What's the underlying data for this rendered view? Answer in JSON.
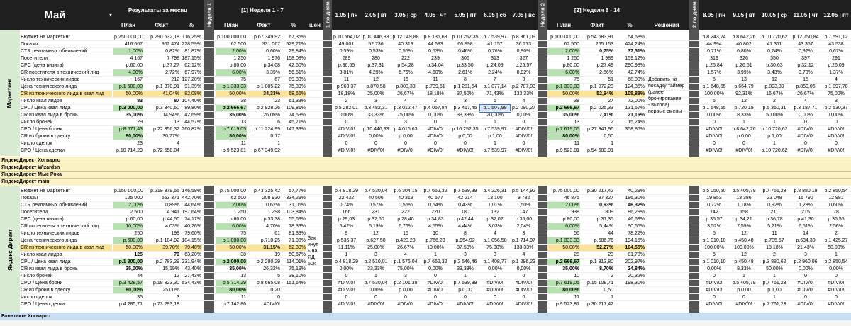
{
  "header": {
    "month": "Май",
    "results_title": "Результаты за месяц",
    "week1_vert": "Неделя 1",
    "week1_title": "[1] Неделя 1 - 7",
    "days_vert": "1 по дням",
    "week2_vert": "Неделя 2",
    "week2_title": "[2] Неделя 8 - 14",
    "days2_vert": "2 по дням",
    "plan": "План",
    "fact": "Факт",
    "pct": "%",
    "solutions": "Решения",
    "trunc": "шен",
    "days1": [
      "1.05 | пн",
      "2.05 | вт",
      "3.05 | ср",
      "4.05 | чт",
      "5.05 | пт",
      "6.05 | сб",
      "7.05 | вс"
    ],
    "days2": [
      "8.05 | пн",
      "9.05 | вт",
      "10.05 | ср",
      "11.05 | чт",
      "12.05 | пт"
    ]
  },
  "side_labels": {
    "marketing": "Маркетинг",
    "yandex": "Яндекс Директ"
  },
  "notes": {
    "w2_solution": "Добавить на\nпосадку таймер\n(ранее\nбронирование\n- выгода)\nпервые смены",
    "w1_trunc": "Зак\nинут\nь на\nЯД\n50к"
  },
  "sections": {
    "s1": "ЯндексДирект Хогвартс",
    "s2": "ЯндексДирект Wizardsn",
    "s3": "ЯндексДирект Мыс Рока",
    "s4": "ЯндексДирект main",
    "s5": "Вконтакте Хогвартс"
  },
  "block1": [
    {
      "label": "Бюджет на маркетинг",
      "m": [
        "р.250 000,00",
        "р.290 632,18",
        "116,25%"
      ],
      "w1": [
        "р.100 000,00",
        "р.67 349,92",
        "67,35%"
      ],
      "d1": [
        "р.10 564,02",
        "р.10 446,93",
        "р.12 049,88",
        "р.8 135,68",
        "р.10 252,35",
        "р.7 539,97",
        "р.8 361,09"
      ],
      "w2": [
        "р.100 000,00",
        "р.54 683,91",
        "54,68%"
      ],
      "d2": [
        "р.8 243,24",
        "р.8 642,26",
        "р.10 720,62",
        "р.12 750,84",
        "р.7 591,12"
      ]
    },
    {
      "label": "Показы",
      "m": [
        "416 667",
        "952 474",
        "228,59%"
      ],
      "w1": [
        "62 500",
        "331 067",
        "529,71%"
      ],
      "d1": [
        "49 001",
        "52 736",
        "40 319",
        "44 683",
        "66 898",
        "41 157",
        "36 273"
      ],
      "w2": [
        "62 500",
        "265 153",
        "424,24%"
      ],
      "d2": [
        "44 994",
        "40 802",
        "47 311",
        "43 357",
        "43 538"
      ]
    },
    {
      "label": "CTR рекламных объявлений",
      "m": [
        "1,00%",
        "0,82%",
        "81,87%"
      ],
      "w1": [
        "2,00%",
        "0,60%",
        "29,84%"
      ],
      "d1": [
        "0,59%",
        "0,53%",
        "0,55%",
        "0,53%",
        "0,46%",
        "0,76%",
        "0,90%"
      ],
      "w2": [
        "2,00%",
        "0,75%",
        "37,51%"
      ],
      "d2": [
        "0,71%",
        "0,80%",
        "0,74%",
        "0,92%",
        "0,67%"
      ]
    },
    {
      "label": "Посетители",
      "m": [
        "4 167",
        "7 798",
        "187,15%"
      ],
      "w1": [
        "1 250",
        "1 976",
        "158,08%"
      ],
      "d1": [
        "289",
        "280",
        "222",
        "239",
        "306",
        "313",
        "327"
      ],
      "w2": [
        "1 250",
        "1 989",
        "159,12%"
      ],
      "d2": [
        "319",
        "326",
        "350",
        "397",
        "291"
      ]
    },
    {
      "label": "CPC (цена визита)",
      "m": [
        "р.60,00",
        "р.37,27",
        "62,12%"
      ],
      "w1": [
        "р.80,00",
        "р.34,08",
        "42,60%"
      ],
      "d1": [
        "р.36,55",
        "р.37,31",
        "р.54,28",
        "р.34,04",
        "р.33,50",
        "р.24,09",
        "р.25,57"
      ],
      "w2": [
        "р.80,00",
        "р.27,49",
        "290,98%"
      ],
      "d2": [
        "р.25,84",
        "р.26,51",
        "р.30,63",
        "р.32,12",
        "р.26,09"
      ]
    },
    {
      "label": "CR посетителя в технический лид",
      "m": [
        "4,00%",
        "2,72%",
        "67,97%"
      ],
      "w1": [
        "6,00%",
        "3,39%",
        "56,51%"
      ],
      "d1": [
        "3,81%",
        "4,29%",
        "6,76%",
        "4,60%",
        "2,61%",
        "2,24%",
        "0,92%"
      ],
      "w2": [
        "6,00%",
        "2,56%",
        "42,74%"
      ],
      "d2": [
        "1,57%",
        "3,99%",
        "3,43%",
        "3,78%",
        "1,37%"
      ]
    },
    {
      "label": "Число технических лидов",
      "m": [
        "167",
        "212",
        "127,20%"
      ],
      "w1": [
        "75",
        "67",
        "89,33%"
      ],
      "d1": [
        "11",
        "12",
        "15",
        "11",
        "8",
        "7",
        "3"
      ],
      "w2": [
        "75",
        "51",
        "68,00%"
      ],
      "d2": [
        "5",
        "13",
        "12",
        "15",
        "4"
      ]
    },
    {
      "label": "Цена технического лида",
      "m": [
        "р.1 500,00",
        "р.1 370,91",
        "91,39%"
      ],
      "w1": [
        "р.1 333,33",
        "р.1 005,22",
        "75,39%"
      ],
      "d1": [
        "р.960,37",
        "р.870,58",
        "р.803,33",
        "р.739,61",
        "р.1 281,54",
        "р.1 077,14",
        "р.2 787,03"
      ],
      "w2": [
        "р.1 333,33",
        "р.1 072,23",
        "124,35%"
      ],
      "d2": [
        "р.1 648,65",
        "р.664,79",
        "р.893,39",
        "р.850,06",
        "р.1 897,78"
      ]
    },
    {
      "label": "CR из технического лида в квал лид",
      "m": [
        "50,00%",
        "41,04%",
        "82,08%"
      ],
      "w1": [
        "50,00%",
        "34,33%",
        "68,66%"
      ],
      "d1": [
        "18,18%",
        "25,00%",
        "26,67%",
        "18,18%",
        "37,50%",
        "71,43%",
        "133,33%"
      ],
      "w2": [
        "50,00%",
        "52,94%",
        "105,88%"
      ],
      "d2": [
        "100,00%",
        "92,31%",
        "16,67%",
        "26,67%",
        "75,00%"
      ]
    },
    {
      "label": "Число квал лидов",
      "m": [
        "83",
        "87",
        "104,40%"
      ],
      "w1": [
        "38",
        "23",
        "61,33%"
      ],
      "d1": [
        "2",
        "3",
        "4",
        "2",
        "3",
        "5",
        "4"
      ],
      "w2": [
        "38",
        "27",
        "72,00%"
      ],
      "d2": [
        "5",
        "12",
        "2",
        "4",
        "3"
      ]
    },
    {
      "label": "CPL / Цена квал лида",
      "m": [
        "р.3 000,00",
        "р.3 340,60",
        "89,80%"
      ],
      "w1": [
        "р.2 666,67",
        "р.2 928,26",
        "109,81%"
      ],
      "d1": [
        "р.5 282,01",
        "р.3 482,31",
        "р.3 012,47",
        "р.4 067,84",
        "р.3 417,45",
        "р.1 507,99",
        "р.2 090,27"
      ],
      "w2": [
        "р.2 666,67",
        "р.2 025,33",
        "131,67%"
      ],
      "d2": [
        "р.1 648,65",
        "р.720,19",
        "р.5 360,31",
        "р.3 187,71",
        "р.2 530,37"
      ]
    },
    {
      "label": "CR из квал лида в бронь",
      "m": [
        "35,00%",
        "14,94%",
        "42,69%"
      ],
      "w1": [
        "35,00%",
        "26,09%",
        "74,53%"
      ],
      "d1": [
        "0,00%",
        "33,33%",
        "75,00%",
        "0,00%",
        "33,33%",
        "20,00%",
        "0,00%"
      ],
      "w2": [
        "35,00%",
        "7,41%",
        "21,16%"
      ],
      "d2": [
        "0,00%",
        "8,33%",
        "50,00%",
        "0,00%",
        "0,00%"
      ]
    },
    {
      "label": "Число броней",
      "m": [
        "29",
        "13",
        "44,57%"
      ],
      "w1": [
        "13",
        "6",
        "45,71%"
      ],
      "d1": [
        "0",
        "1",
        "3",
        "0",
        "1",
        "1",
        "0"
      ],
      "w2": [
        "13",
        "2",
        "15,24%"
      ],
      "d2": [
        "0",
        "1",
        "1",
        "0",
        "0"
      ]
    },
    {
      "label": "CPO / Цена брони",
      "m": [
        "р.8 571,43",
        "р.22 356,32",
        "260,82%"
      ],
      "w1": [
        "р.7 619,05",
        "р.11 224,99",
        "147,33%"
      ],
      "d1": [
        "#DIV/0!",
        "р.10 446,93",
        "р.4 016,63",
        "#DIV/0!",
        "р.10 252,35",
        "р.7 539,97",
        "#DIV/0!"
      ],
      "w2": [
        "р.7 619,05",
        "р.27 341,96",
        "358,86%"
      ],
      "d2": [
        "#DIV/0!",
        "р.8 642,26",
        "р.10 720,62",
        "#DIV/0!",
        "#DIV/0!"
      ]
    },
    {
      "label": "CR из брони в сделку",
      "m": [
        "80,00%",
        "30,77%",
        ""
      ],
      "w1": [
        "80,00%",
        "0,17",
        ""
      ],
      "d1": [
        "#DIV/0!",
        "0,00%",
        "р.0,00",
        "#DIV/0!",
        "р.0,00",
        "р.1,00",
        "#DIV/0!"
      ],
      "w2": [
        "80,00%",
        "0,50",
        ""
      ],
      "d2": [
        "#DIV/0!",
        "р.0,00",
        "р.1,00",
        "#DIV/0!",
        "#DIV/0!"
      ]
    },
    {
      "label": "Число сделок",
      "m": [
        "23",
        "4",
        ""
      ],
      "w1": [
        "11",
        "1",
        ""
      ],
      "d1": [
        "0",
        "0",
        "0",
        "0",
        "0",
        "1",
        "0"
      ],
      "w2": [
        "11",
        "1",
        ""
      ],
      "d2": [
        "0",
        "0",
        "1",
        "0",
        "0"
      ]
    },
    {
      "label": "CPO / Цена сделки",
      "m": [
        "р.10 714,29",
        "р.72 658,04",
        ""
      ],
      "w1": [
        "р.9 523,81",
        "р.67 349,92",
        ""
      ],
      "d1": [
        "#DIV/0!",
        "#DIV/0!",
        "#DIV/0!",
        "#DIV/0!",
        "#DIV/0!",
        "р.7 539,97",
        "#DIV/0!"
      ],
      "w2": [
        "р.9 523,81",
        "р.54 683,91",
        ""
      ],
      "d2": [
        "#DIV/0!",
        "#DIV/0!",
        "р.10 720,62",
        "#DIV/0!",
        "#DIV/0!"
      ]
    }
  ],
  "block2": [
    {
      "label": "Бюджет на маркетинг",
      "m": [
        "р.150 000,00",
        "р.219 879,55",
        "146,59%"
      ],
      "w1": [
        "р.75 000,00",
        "р.43 325,42",
        "57,77%"
      ],
      "d1": [
        "р.4 818,29",
        "р.7 530,04",
        "р.6 304,15",
        "р.7 662,32",
        "р.7 639,39",
        "р.4 226,31",
        "р.5 144,92"
      ],
      "w2": [
        "р.75 000,00",
        "р.30 217,42",
        "40,29%"
      ],
      "d2": [
        "р.5 050,50",
        "р.5 405,79",
        "р.7 761,23",
        "р.8 880,19",
        "р.2 850,54"
      ]
    },
    {
      "label": "Показы",
      "m": [
        "125 000",
        "553 371",
        "442,70%"
      ],
      "w1": [
        "62 500",
        "208 930",
        "334,29%"
      ],
      "d1": [
        "22 432",
        "40 506",
        "40 319",
        "40 577",
        "42 214",
        "13 100",
        "9 782"
      ],
      "w2": [
        "46 875",
        "87 327",
        "186,30%"
      ],
      "d2": [
        "19 853",
        "13 386",
        "23 048",
        "16 790",
        "12 981"
      ]
    },
    {
      "label": "CTR рекламных объявлений",
      "m": [
        "2,00%",
        "0,89%",
        "44,64%"
      ],
      "w1": [
        "2,00%",
        "0,62%",
        "31,06%"
      ],
      "d1": [
        "0,74%",
        "0,57%",
        "0,55%",
        "0,54%",
        "0,43%",
        "1,01%",
        "1,50%"
      ],
      "w2": [
        "2,00%",
        "0,93%",
        "46,32%"
      ],
      "d2": [
        "0,72%",
        "1,18%",
        "0,92%",
        "1,28%",
        "0,60%"
      ]
    },
    {
      "label": "Посетители",
      "m": [
        "2 500",
        "4 941",
        "197,64%"
      ],
      "w1": [
        "1 250",
        "1 298",
        "103,84%"
      ],
      "d1": [
        "166",
        "231",
        "222",
        "220",
        "180",
        "132",
        "147"
      ],
      "w2": [
        "938",
        "809",
        "86,29%"
      ],
      "d2": [
        "142",
        "158",
        "211",
        "215",
        "78"
      ]
    },
    {
      "label": "CPC (цена визита)",
      "m": [
        "р.60,00",
        "р.44,50",
        "74,17%"
      ],
      "w1": [
        "р.60,00",
        "р.33,38",
        "55,63%"
      ],
      "d1": [
        "р.29,03",
        "р.32,60",
        "р.28,40",
        "р.34,83",
        "р.42,44",
        "р.32,02",
        "р.35,00"
      ],
      "w2": [
        "р.80,00",
        "р.37,35",
        "46,69%"
      ],
      "d2": [
        "р.35,57",
        "р.34,21",
        "р.36,78",
        "р.41,30",
        "р.36,55"
      ]
    },
    {
      "label": "CR посетителя в технический лид",
      "m": [
        "10,00%",
        "4,03%",
        "40,26%"
      ],
      "w1": [
        "6,00%",
        "4,70%",
        "78,33%"
      ],
      "d1": [
        "5,42%",
        "5,19%",
        "6,76%",
        "4,55%",
        "4,44%",
        "3,03%",
        "2,04%"
      ],
      "w2": [
        "6,00%",
        "5,44%",
        "90,65%"
      ],
      "d2": [
        "3,52%",
        "7,59%",
        "5,21%",
        "6,51%",
        "2,56%"
      ]
    },
    {
      "label": "Число технических лидов",
      "m": [
        "250",
        "199",
        "79,60%"
      ],
      "w1": [
        "75",
        "61",
        "81,33%"
      ],
      "d1": [
        "9",
        "12",
        "15",
        "10",
        "8",
        "4",
        "3"
      ],
      "w2": [
        "56",
        "44",
        "78,22%"
      ],
      "d2": [
        "5",
        "12",
        "11",
        "14",
        "2"
      ]
    },
    {
      "label": "Цена технического лида",
      "m": [
        "р.600,00",
        "р.1 104,92",
        "184,15%"
      ],
      "w1": [
        "р.1 000,00",
        "р.710,25",
        "71,03%"
      ],
      "d1": [
        "р.535,37",
        "р.627,50",
        "р.420,28",
        "р.766,23",
        "р.954,92",
        "р.1 056,58",
        "р.1 714,97"
      ],
      "w2": [
        "р.1 333,33",
        "р.686,76",
        "194,15%"
      ],
      "d2": [
        "р.1 010,10",
        "р.450,48",
        "р.705,57",
        "р.634,30",
        "р.1 425,27"
      ]
    },
    {
      "label": "CR из технического лида в квал лид",
      "m": [
        "50,00%",
        "39,70%",
        "79,40%"
      ],
      "w1": [
        "50,00%",
        "31,15%",
        "62,30%"
      ],
      "d1": [
        "11,11%",
        "25,00%",
        "26,67%",
        "10,00%",
        "37,50%",
        "75,00%",
        "133,33%"
      ],
      "w2": [
        "50,00%",
        "52,27%",
        "104,55%"
      ],
      "d2": [
        "100,00%",
        "100,00%",
        "18,18%",
        "21,43%",
        "50,00%"
      ]
    },
    {
      "label": "Число квал лидов",
      "m": [
        "125",
        "79",
        "63,20%"
      ],
      "w1": [
        "38",
        "19",
        "50,67%"
      ],
      "d1": [
        "1",
        "3",
        "4",
        "1",
        "3",
        "3",
        "4"
      ],
      "w2": [
        "28",
        "23",
        "81,78%"
      ],
      "d2": [
        "5",
        "12",
        "2",
        "3",
        "1"
      ]
    },
    {
      "label": "CPL / Цена квал лида",
      "m": [
        "р.1 200,00",
        "р.2 783,29",
        "231,94%"
      ],
      "w1": [
        "р.2 000,00",
        "р.2 280,29",
        "114,01%"
      ],
      "d1": [
        "р.4 818,29",
        "р.2 510,01",
        "р.1 576,04",
        "р.7 662,32",
        "р.2 546,46",
        "р.1 408,77",
        "р.1 286,23"
      ],
      "w2": [
        "р.2 666,67",
        "р.1 313,80",
        "202,97%"
      ],
      "d2": [
        "р.1 010,10",
        "р.450,48",
        "р.3 880,62",
        "р.2 960,06",
        "р.2 850,54"
      ]
    },
    {
      "label": "CR из квал лида в бронь",
      "m": [
        "35,00%",
        "15,19%",
        "43,40%"
      ],
      "w1": [
        "35,00%",
        "26,32%",
        "75,19%"
      ],
      "d1": [
        "0,00%",
        "33,33%",
        "75,00%",
        "0,00%",
        "33,33%",
        "0,00%",
        "0,00%"
      ],
      "w2": [
        "35,00%",
        "8,70%",
        "24,84%"
      ],
      "d2": [
        "0,00%",
        "8,33%",
        "50,00%",
        "0,00%",
        "0,00%"
      ]
    },
    {
      "label": "Число броней",
      "m": [
        "44",
        "12",
        "27,43%"
      ],
      "w1": [
        "13",
        "5",
        "38,10%"
      ],
      "d1": [
        "0",
        "1",
        "3",
        "0",
        "1",
        "0",
        "0"
      ],
      "w2": [
        "10",
        "2",
        "20,32%"
      ],
      "d2": [
        "0",
        "1",
        "1",
        "0",
        "0"
      ]
    },
    {
      "label": "CPO / Цена брони",
      "m": [
        "р.3 428,57",
        "р.18 323,30",
        "534,43%"
      ],
      "w1": [
        "р.5 714,29",
        "р.8 665,08",
        "151,64%"
      ],
      "d1": [
        "#DIV/0!",
        "р.7 530,04",
        "р.2 101,38",
        "#DIV/0!",
        "р.7 639,39",
        "#DIV/0!",
        "#DIV/0!"
      ],
      "w2": [
        "р.7 619,05",
        "р.15 108,71",
        "198,30%"
      ],
      "d2": [
        "#DIV/0!",
        "р.5 405,79",
        "р.7 761,23",
        "#DIV/0!",
        "#DIV/0!"
      ]
    },
    {
      "label": "CR из брони в сделку",
      "m": [
        "80,00%",
        "25,00%",
        ""
      ],
      "w1": [
        "80,00%",
        "0,20",
        ""
      ],
      "d1": [
        "#DIV/0!",
        "0,00%",
        "р.0,00",
        "#DIV/0!",
        "р.0,00",
        "#DIV/0!",
        "#DIV/0!"
      ],
      "w2": [
        "80,00%",
        "0,50",
        ""
      ],
      "d2": [
        "#DIV/0!",
        "р.0,00",
        "р.1,00",
        "#DIV/0!",
        "#DIV/0!"
      ]
    },
    {
      "label": "Число сделок",
      "m": [
        "35",
        "3",
        ""
      ],
      "w1": [
        "11",
        "0",
        ""
      ],
      "d1": [
        "0",
        "0",
        "0",
        "0",
        "0",
        "0",
        "0"
      ],
      "w2": [
        "11",
        "1",
        ""
      ],
      "d2": [
        "0",
        "0",
        "1",
        "0",
        "0"
      ]
    },
    {
      "label": "CPO / Цена сделки",
      "m": [
        "р.4 285,71",
        "р.73 293,18",
        ""
      ],
      "w1": [
        "р.7 142,86",
        "#DIV/0!",
        ""
      ],
      "d1": [
        "#DIV/0!",
        "#DIV/0!",
        "#DIV/0!",
        "#DIV/0!",
        "#DIV/0!",
        "#DIV/0!",
        "#DIV/0!"
      ],
      "w2": [
        "р.9 523,81",
        "р.30 217,42",
        ""
      ],
      "d2": [
        "#DIV/0!",
        "#DIV/0!",
        "р.7 761,23",
        "#DIV/0!",
        "#DIV/0!"
      ]
    }
  ]
}
